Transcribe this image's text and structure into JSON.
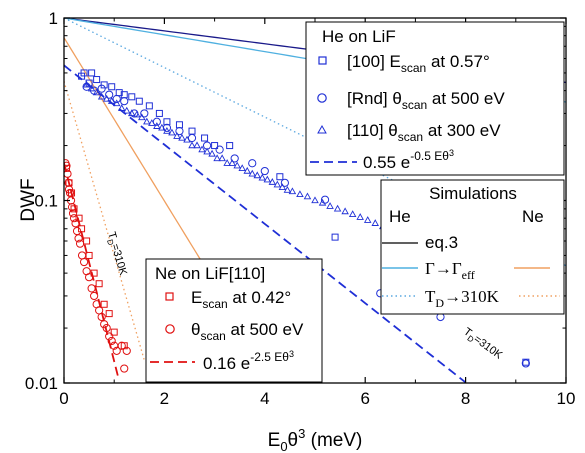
{
  "chart_data": {
    "type": "scatter",
    "title": "",
    "xlabel_main": "E",
    "xlabel_sub": "0",
    "xlabel_theta": "θ",
    "xlabel_sup": "3",
    "xlabel_unit": " (meV)",
    "ylabel": "DWF",
    "xlim": [
      0,
      10
    ],
    "ylim": [
      0.01,
      1
    ],
    "yscale": "log",
    "x_ticks": [
      "0",
      "2",
      "4",
      "6",
      "8",
      "10"
    ],
    "y_ticks": [
      "0.01",
      "0.1",
      "1"
    ],
    "colors": {
      "he": "#1f2fd6",
      "ne": "#e01010",
      "eq3": "#1a1a8a",
      "gamma": "#4fb0e0",
      "td": "#5aa8e0",
      "ne_gamma": "#f0a060",
      "ne_td": "#f0a060",
      "black": "#000000"
    },
    "legend_he": {
      "title": "He on LiF",
      "items": [
        {
          "marker": "square",
          "prefix": "[100] E",
          "sub": "scan",
          "suffix": " at 0.57°"
        },
        {
          "marker": "circle",
          "prefix": "[Rnd] θ",
          "sub": "scan",
          "suffix": " at 500 eV"
        },
        {
          "marker": "triangle",
          "prefix": "[110] θ",
          "sub": "scan",
          "suffix": " at 300 eV"
        }
      ],
      "fit_label": "0.55 e",
      "fit_exp": "-0.5 Eθ",
      "fit_exp_sup": "3"
    },
    "legend_ne": {
      "title": "Ne on LiF[110]",
      "items": [
        {
          "marker": "square",
          "prefix": "E",
          "sub": "scan",
          "suffix": " at 0.42°"
        },
        {
          "marker": "circle",
          "prefix": "θ",
          "sub": "scan",
          "suffix": " at 500 eV"
        }
      ],
      "fit_label": "0.16 e",
      "fit_exp": "-2.5 Eθ",
      "fit_exp_sup": "3"
    },
    "legend_sim": {
      "title": "Simulations",
      "col_he": "He",
      "col_ne": "Ne",
      "row1": "eq.3",
      "row2_a": "Γ→Γ",
      "row2_sub": "eff",
      "row3_a": "T",
      "row3_sub": "D",
      "row3_b": "→310K"
    },
    "annotations": {
      "td_ne": "T",
      "td_ne_sub": "D",
      "td_ne_rest": "=310K",
      "td_he": "T",
      "td_he_sub": "D",
      "td_he_rest": "=310K"
    },
    "series": [
      {
        "name": "He fit",
        "type": "line",
        "style": "dashed",
        "a": 0.55,
        "b": 0.5,
        "x_range": [
          0,
          8
        ]
      },
      {
        "name": "He eq.3",
        "type": "line",
        "style": "solid",
        "a": 1.0,
        "b": 0.0813,
        "x_range": [
          0,
          10
        ]
      },
      {
        "name": "He Γ→Γeff",
        "type": "line",
        "style": "solid",
        "a": 1.0,
        "b": 0.106,
        "x_range": [
          0,
          10
        ]
      },
      {
        "name": "He TD→310K",
        "type": "line",
        "style": "dotted",
        "a": 1.0,
        "b": 0.3125,
        "x_range": [
          0,
          10
        ]
      },
      {
        "name": "Ne fit",
        "type": "line",
        "style": "dashed",
        "a": 0.16,
        "b": 2.5,
        "x_range": [
          0,
          1.08
        ]
      },
      {
        "name": "Ne Γ→Γeff",
        "type": "line",
        "style": "solid",
        "a": 0.78,
        "b": 1.03,
        "x_range": [
          0,
          3.6
        ]
      },
      {
        "name": "Ne TD→310K",
        "type": "line",
        "style": "dotted",
        "a": 0.45,
        "b": 2.2,
        "x_range": [
          0,
          1.6
        ]
      },
      {
        "name": "[100] Escan at 0.57°",
        "type": "scatter",
        "marker": "square",
        "points": [
          [
            0.35,
            0.48
          ],
          [
            0.4,
            0.5
          ],
          [
            0.5,
            0.44
          ],
          [
            0.55,
            0.5
          ],
          [
            0.65,
            0.46
          ],
          [
            0.8,
            0.43
          ],
          [
            0.95,
            0.42
          ],
          [
            1.1,
            0.39
          ],
          [
            1.2,
            0.38
          ],
          [
            1.35,
            0.37
          ],
          [
            1.5,
            0.35
          ],
          [
            1.7,
            0.33
          ],
          [
            1.9,
            0.3
          ],
          [
            2.05,
            0.27
          ],
          [
            2.3,
            0.26
          ],
          [
            2.55,
            0.24
          ],
          [
            2.8,
            0.22
          ],
          [
            3.0,
            0.2
          ],
          [
            3.3,
            0.2
          ],
          [
            4.3,
            0.135
          ],
          [
            5.4,
            0.063
          ],
          [
            6.5,
            0.04
          ],
          [
            7.3,
            0.028
          ],
          [
            9.2,
            0.013
          ]
        ]
      },
      {
        "name": "[Rnd] θscan at 500 eV",
        "type": "scatter",
        "marker": "circle",
        "points": [
          [
            0.45,
            0.42
          ],
          [
            0.6,
            0.4
          ],
          [
            0.75,
            0.41
          ],
          [
            0.9,
            0.38
          ],
          [
            1.05,
            0.36
          ],
          [
            1.2,
            0.35
          ],
          [
            1.4,
            0.3
          ],
          [
            1.6,
            0.3
          ],
          [
            1.85,
            0.27
          ],
          [
            2.05,
            0.25
          ],
          [
            2.3,
            0.24
          ],
          [
            2.55,
            0.22
          ],
          [
            2.85,
            0.2
          ],
          [
            3.1,
            0.19
          ],
          [
            3.4,
            0.17
          ],
          [
            3.75,
            0.16
          ],
          [
            4.0,
            0.145
          ],
          [
            4.4,
            0.125
          ],
          [
            5.2,
            0.101
          ],
          [
            6.3,
            0.031
          ],
          [
            7.5,
            0.023
          ],
          [
            9.2,
            0.0128
          ]
        ]
      },
      {
        "name": "[110] θscan at 300 eV",
        "type": "scatter",
        "marker": "triangle",
        "points": [
          [
            0.45,
            0.43
          ],
          [
            0.55,
            0.41
          ],
          [
            0.65,
            0.39
          ],
          [
            0.75,
            0.37
          ],
          [
            0.85,
            0.36
          ],
          [
            0.95,
            0.35
          ],
          [
            1.05,
            0.34
          ],
          [
            1.15,
            0.32
          ],
          [
            1.25,
            0.31
          ],
          [
            1.35,
            0.3
          ],
          [
            1.45,
            0.295
          ],
          [
            1.55,
            0.285
          ],
          [
            1.65,
            0.27
          ],
          [
            1.75,
            0.265
          ],
          [
            1.85,
            0.255
          ],
          [
            1.95,
            0.25
          ],
          [
            2.05,
            0.24
          ],
          [
            2.15,
            0.235
          ],
          [
            2.25,
            0.225
          ],
          [
            2.35,
            0.22
          ],
          [
            2.45,
            0.215
          ],
          [
            2.55,
            0.2
          ],
          [
            2.65,
            0.2
          ],
          [
            2.75,
            0.19
          ],
          [
            2.85,
            0.185
          ],
          [
            2.95,
            0.18
          ],
          [
            3.05,
            0.17
          ],
          [
            3.15,
            0.17
          ],
          [
            3.25,
            0.16
          ],
          [
            3.35,
            0.16
          ],
          [
            3.45,
            0.155
          ],
          [
            3.55,
            0.15
          ],
          [
            3.65,
            0.145
          ],
          [
            3.75,
            0.14
          ],
          [
            3.85,
            0.137
          ],
          [
            3.95,
            0.133
          ],
          [
            4.05,
            0.13
          ],
          [
            4.15,
            0.126
          ],
          [
            4.25,
            0.122
          ],
          [
            4.35,
            0.118
          ],
          [
            4.45,
            0.114
          ],
          [
            4.55,
            0.112
          ],
          [
            4.7,
            0.108
          ],
          [
            4.85,
            0.105
          ],
          [
            5.0,
            0.1
          ],
          [
            5.15,
            0.097
          ],
          [
            5.3,
            0.093
          ],
          [
            5.45,
            0.09
          ],
          [
            5.6,
            0.087
          ],
          [
            5.75,
            0.084
          ],
          [
            5.9,
            0.081
          ],
          [
            6.05,
            0.078
          ],
          [
            6.2,
            0.075
          ],
          [
            6.35,
            0.072
          ],
          [
            6.5,
            0.07
          ],
          [
            6.7,
            0.066
          ],
          [
            6.9,
            0.063
          ],
          [
            7.1,
            0.06
          ],
          [
            7.3,
            0.057
          ],
          [
            7.5,
            0.054
          ],
          [
            7.7,
            0.05
          ],
          [
            7.9,
            0.046
          ],
          [
            8.1,
            0.044
          ],
          [
            8.4,
            0.042
          ],
          [
            8.6,
            0.04
          ]
        ]
      },
      {
        "name": "Ne Escan at 0.42°",
        "type": "scatter",
        "marker": "square",
        "points": [
          [
            0.05,
            0.15
          ],
          [
            0.1,
            0.125
          ],
          [
            0.15,
            0.11
          ],
          [
            0.2,
            0.09
          ],
          [
            0.3,
            0.08
          ],
          [
            0.35,
            0.07
          ],
          [
            0.45,
            0.06
          ],
          [
            0.5,
            0.05
          ],
          [
            0.6,
            0.04
          ],
          [
            0.7,
            0.035
          ],
          [
            0.8,
            0.027
          ],
          [
            0.9,
            0.024
          ],
          [
            1.0,
            0.019
          ],
          [
            1.2,
            0.016
          ]
        ]
      },
      {
        "name": "Ne θscan at 500 eV",
        "type": "scatter",
        "marker": "circle",
        "points": [
          [
            0.03,
            0.16
          ],
          [
            0.05,
            0.155
          ],
          [
            0.07,
            0.14
          ],
          [
            0.09,
            0.125
          ],
          [
            0.1,
            0.115
          ],
          [
            0.12,
            0.11
          ],
          [
            0.14,
            0.1
          ],
          [
            0.16,
            0.092
          ],
          [
            0.18,
            0.085
          ],
          [
            0.2,
            0.08
          ],
          [
            0.23,
            0.075
          ],
          [
            0.26,
            0.068
          ],
          [
            0.29,
            0.062
          ],
          [
            0.32,
            0.058
          ],
          [
            0.36,
            0.05
          ],
          [
            0.4,
            0.046
          ],
          [
            0.45,
            0.041
          ],
          [
            0.5,
            0.038
          ],
          [
            0.55,
            0.033
          ],
          [
            0.6,
            0.03
          ],
          [
            0.65,
            0.027
          ],
          [
            0.7,
            0.025
          ],
          [
            0.75,
            0.023
          ],
          [
            0.8,
            0.021
          ],
          [
            0.85,
            0.02
          ],
          [
            0.9,
            0.018
          ],
          [
            0.95,
            0.017
          ],
          [
            1.0,
            0.016
          ],
          [
            1.05,
            0.015
          ],
          [
            1.15,
            0.016
          ],
          [
            1.25,
            0.015
          ],
          [
            1.2,
            0.012
          ]
        ]
      }
    ]
  }
}
